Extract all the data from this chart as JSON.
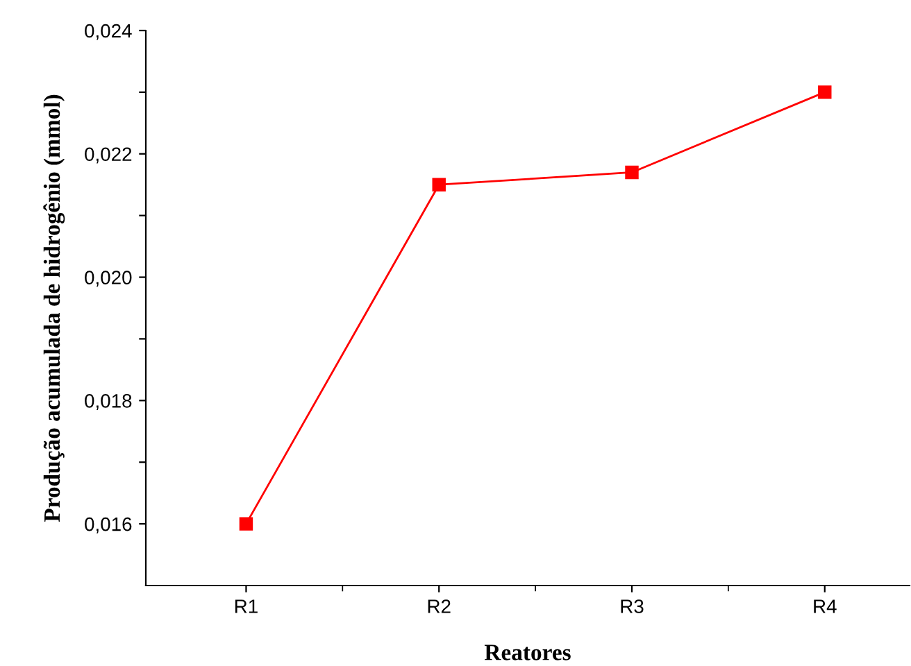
{
  "chart_data": {
    "type": "line",
    "xlabel": "Reatores",
    "ylabel": "Produção acumulada de hidrogênio (mmol)",
    "categories": [
      "R1",
      "R2",
      "R3",
      "R4"
    ],
    "series": [
      {
        "color": "#ff0000",
        "values": [
          0.016,
          0.0215,
          0.0217,
          0.023
        ]
      }
    ],
    "marker": "square",
    "line_style": "solid",
    "ylim": [
      0.015,
      0.024
    ],
    "yticks": [
      {
        "value": 0.016,
        "label": "0,016"
      },
      {
        "value": 0.017,
        "label": null
      },
      {
        "value": 0.018,
        "label": "0,018"
      },
      {
        "value": 0.019,
        "label": null
      },
      {
        "value": 0.02,
        "label": "0,020"
      },
      {
        "value": 0.021,
        "label": null
      },
      {
        "value": 0.022,
        "label": "0,022"
      },
      {
        "value": 0.023,
        "label": null
      },
      {
        "value": 0.024,
        "label": "0,024"
      }
    ]
  }
}
